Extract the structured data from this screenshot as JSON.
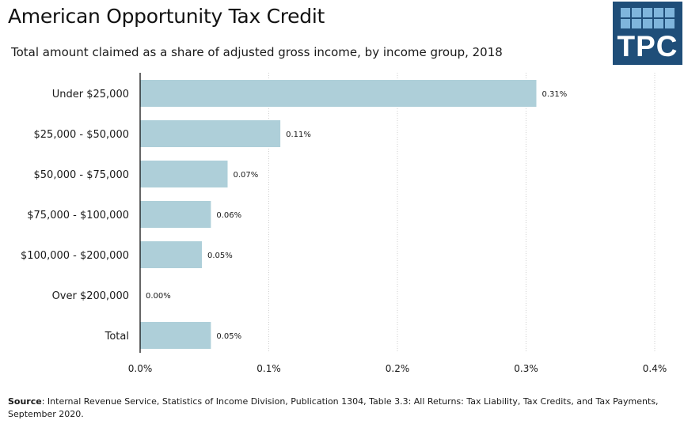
{
  "header": {
    "title": "American Opportunity Tax Credit",
    "subtitle": "Total amount claimed as a share of adjusted gross income, by income group, 2018",
    "logo_text": "TPC"
  },
  "chart_data": {
    "type": "bar",
    "orientation": "horizontal",
    "title": "American Opportunity Tax Credit",
    "subtitle": "Total amount claimed as a share of adjusted gross income, by income group, 2018",
    "categories": [
      "Under $25,000",
      "$25,000 - $50,000",
      "$50,000 - $75,000",
      "$75,000 - $100,000",
      "$100,000 - $200,000",
      "Over $200,000",
      "Total"
    ],
    "values": [
      0.308,
      0.109,
      0.068,
      0.055,
      0.048,
      0.0,
      0.055
    ],
    "value_labels": [
      "0.31%",
      "0.11%",
      "0.07%",
      "0.06%",
      "0.05%",
      "0.00%",
      "0.05%"
    ],
    "xlim": [
      0,
      0.4
    ],
    "xticks": [
      0,
      0.1,
      0.2,
      0.3,
      0.4
    ],
    "xtick_labels": [
      "0.0%",
      "0.1%",
      "0.2%",
      "0.3%",
      "0.4%"
    ],
    "xlabel": "",
    "ylabel": "",
    "grid": "vertical dotted",
    "bar_color": "#aecfd9"
  },
  "source": {
    "label": "Source",
    "text": ": Internal Revenue Service, Statistics of Income Division, Publication 1304, Table 3.3: All Returns: Tax Liability, Tax Credits, and Tax Payments, September  2020."
  }
}
